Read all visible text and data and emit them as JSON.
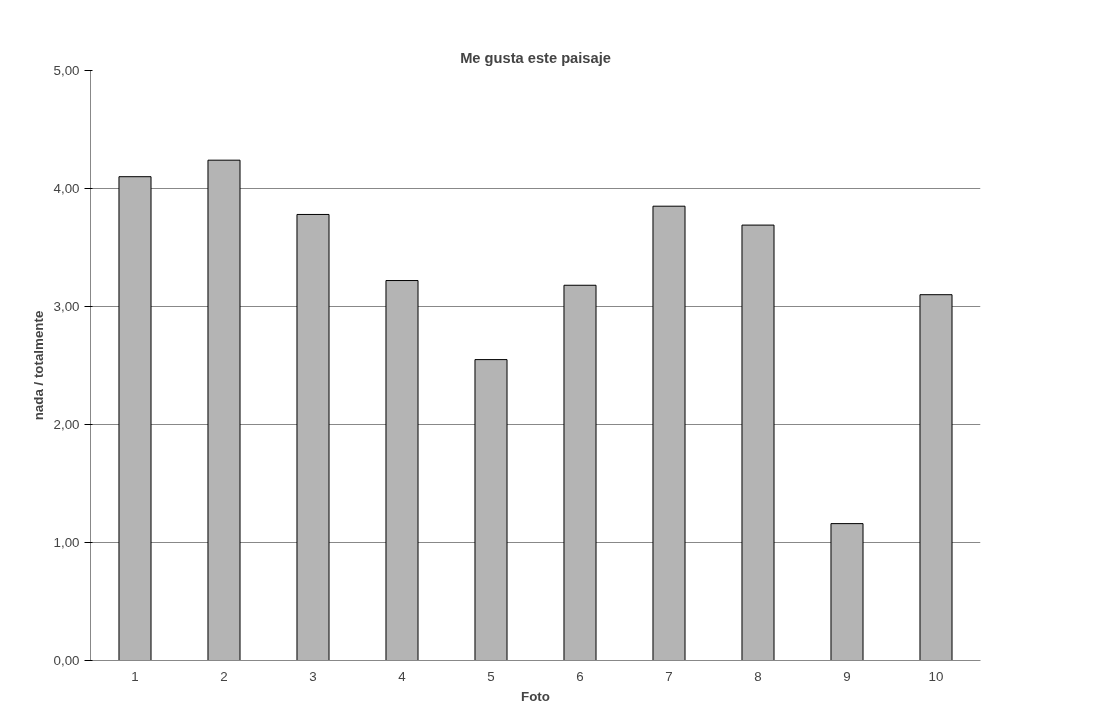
{
  "chart_data": {
    "type": "bar",
    "title": "Me gusta este paisaje",
    "xlabel": "Foto",
    "ylabel": "nada / totalmente",
    "categories": [
      "1",
      "2",
      "3",
      "4",
      "5",
      "6",
      "7",
      "8",
      "9",
      "10"
    ],
    "values": [
      4.1,
      4.24,
      3.78,
      3.22,
      2.55,
      3.18,
      3.85,
      3.69,
      1.16,
      3.1
    ],
    "color": "#b4b4b4",
    "ylim": [
      0,
      5
    ],
    "yticks": [
      {
        "value": 0,
        "label": "0,00"
      },
      {
        "value": 1,
        "label": "1,00"
      },
      {
        "value": 2,
        "label": "2,00"
      },
      {
        "value": 3,
        "label": "3,00"
      },
      {
        "value": 4,
        "label": "4,00"
      },
      {
        "value": 5,
        "label": "5,00"
      }
    ],
    "grid": "y"
  }
}
